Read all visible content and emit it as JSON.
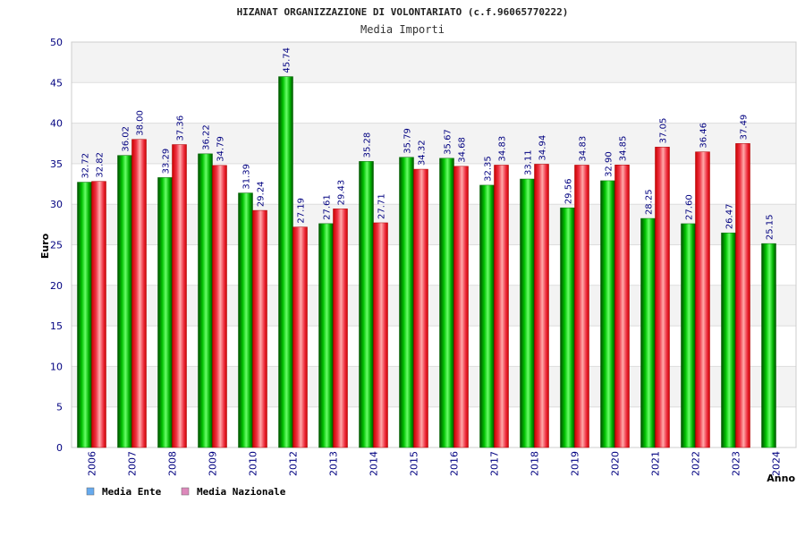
{
  "chart_data": {
    "type": "bar",
    "title": "HIZANAT ORGANIZZAZIONE DI VOLONTARIATO (c.f.96065770222)",
    "subtitle": "Media Importi",
    "xlabel": "Anno",
    "ylabel": "Euro",
    "ylim": [
      0,
      50
    ],
    "yticks": [
      0,
      5,
      10,
      15,
      20,
      25,
      30,
      35,
      40,
      45,
      50
    ],
    "grid": true,
    "legend_position": "bottom-left",
    "categories": [
      "2006",
      "2007",
      "2008",
      "2009",
      "2010",
      "2012",
      "2013",
      "2014",
      "2015",
      "2016",
      "2017",
      "2018",
      "2019",
      "2020",
      "2021",
      "2022",
      "2023",
      "2024"
    ],
    "series": [
      {
        "name": "Media Ente",
        "color": "#00aa00",
        "legend_color": "#66aaee",
        "values": [
          32.72,
          36.02,
          33.29,
          36.22,
          31.39,
          45.74,
          27.61,
          35.28,
          35.79,
          35.67,
          32.35,
          33.11,
          29.56,
          32.9,
          28.25,
          27.6,
          26.47,
          25.15
        ],
        "labels": [
          "32.72",
          "36.02",
          "33.29",
          "36.22",
          "31.39",
          "45.74",
          "27.61",
          "35.28",
          "35.79",
          "35.67",
          "32.35",
          "33.11",
          "29.56",
          "32.90",
          "28.25",
          "27.60",
          "26.47",
          "25.15"
        ]
      },
      {
        "name": "Media Nazionale",
        "color": "#ee2233",
        "legend_color": "#dd88bb",
        "values": [
          32.82,
          38.0,
          37.36,
          34.79,
          29.24,
          27.19,
          29.43,
          27.71,
          34.32,
          34.68,
          34.83,
          34.94,
          34.83,
          34.85,
          37.05,
          36.46,
          37.49,
          null
        ],
        "labels": [
          "32.82",
          "38.00",
          "37.36",
          "34.79",
          "29.24",
          "27.19",
          "29.43",
          "27.71",
          "34.32",
          "34.68",
          "34.83",
          "34.94",
          "34.83",
          "34.85",
          "37.05",
          "36.46",
          "37.49",
          null
        ]
      }
    ]
  }
}
